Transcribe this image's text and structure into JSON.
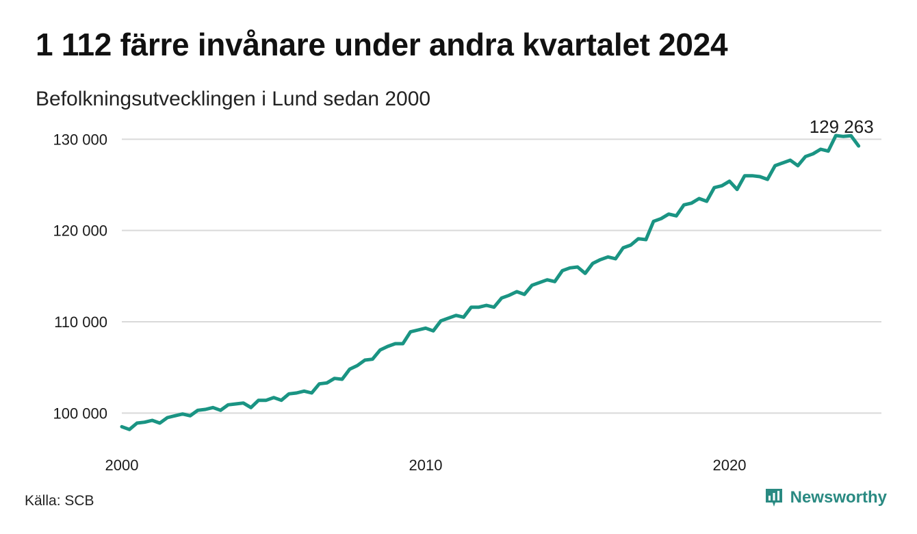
{
  "header": {
    "title": "1 112 färre invånare under andra kvartalet 2024",
    "subtitle": "Befolkningsutvecklingen i Lund sedan 2000"
  },
  "footer": {
    "source": "Källa: SCB",
    "brand": "Newsworthy",
    "brand_icon": "newsworthy-logo-icon"
  },
  "colors": {
    "line": "#1a9483",
    "grid": "#d9d9d9",
    "brand": "#2a8a82"
  },
  "chart_data": {
    "type": "line",
    "title": "1 112 färre invånare under andra kvartalet 2024",
    "subtitle": "Befolkningsutvecklingen i Lund sedan 2000",
    "xlabel": "",
    "ylabel": "",
    "xlim": [
      2000.0,
      2025.0
    ],
    "ylim": [
      96500,
      131000
    ],
    "x_ticks": [
      2000,
      2010,
      2020
    ],
    "x_tick_labels": [
      "2000",
      "2010",
      "2020"
    ],
    "y_ticks": [
      100000,
      110000,
      120000,
      130000
    ],
    "y_tick_labels": [
      "100 000",
      "110 000",
      "120 000",
      "130 000"
    ],
    "grid": "horizontal",
    "annotation": {
      "x": 2024.25,
      "y": 129263,
      "label": "129 263"
    },
    "series": [
      {
        "x": [
          2000.0,
          2000.25,
          2000.5,
          2000.75,
          2001.0,
          2001.25,
          2001.5,
          2001.75,
          2002.0,
          2002.25,
          2002.5,
          2002.75,
          2003.0,
          2003.25,
          2003.5,
          2003.75,
          2004.0,
          2004.25,
          2004.5,
          2004.75,
          2005.0,
          2005.25,
          2005.5,
          2005.75,
          2006.0,
          2006.25,
          2006.5,
          2006.75,
          2007.0,
          2007.25,
          2007.5,
          2007.75,
          2008.0,
          2008.25,
          2008.5,
          2008.75,
          2009.0,
          2009.25,
          2009.5,
          2009.75,
          2010.0,
          2010.25,
          2010.5,
          2010.75,
          2011.0,
          2011.25,
          2011.5,
          2011.75,
          2012.0,
          2012.25,
          2012.5,
          2012.75,
          2013.0,
          2013.25,
          2013.5,
          2013.75,
          2014.0,
          2014.25,
          2014.5,
          2014.75,
          2015.0,
          2015.25,
          2015.5,
          2015.75,
          2016.0,
          2016.25,
          2016.5,
          2016.75,
          2017.0,
          2017.25,
          2017.5,
          2017.75,
          2018.0,
          2018.25,
          2018.5,
          2018.75,
          2019.0,
          2019.25,
          2019.5,
          2019.75,
          2020.0,
          2020.25,
          2020.5,
          2020.75,
          2021.0,
          2021.25,
          2021.5,
          2021.75,
          2022.0,
          2022.25,
          2022.5,
          2022.75,
          2023.0,
          2023.25,
          2023.5,
          2023.75,
          2024.0,
          2024.25
        ],
        "values": [
          98500,
          98200,
          98900,
          99000,
          99200,
          98900,
          99500,
          99700,
          99900,
          99700,
          100300,
          100400,
          100600,
          100300,
          100900,
          101000,
          101100,
          100600,
          101400,
          101400,
          101700,
          101400,
          102100,
          102200,
          102400,
          102200,
          103200,
          103300,
          103800,
          103700,
          104800,
          105200,
          105800,
          105900,
          106900,
          107300,
          107600,
          107600,
          108900,
          109100,
          109300,
          109000,
          110100,
          110400,
          110700,
          110500,
          111600,
          111600,
          111800,
          111600,
          112600,
          112900,
          113300,
          113000,
          114000,
          114300,
          114600,
          114400,
          115600,
          115900,
          116000,
          115300,
          116400,
          116800,
          117100,
          116900,
          118100,
          118400,
          119100,
          119000,
          121000,
          121300,
          121800,
          121600,
          122800,
          123000,
          123500,
          123200,
          124700,
          124900,
          125400,
          124500,
          126000,
          126000,
          125900,
          125600,
          127100,
          127400,
          127700,
          127100,
          128100,
          128400,
          128900,
          128700,
          130400,
          130300,
          130375,
          129263
        ]
      }
    ]
  }
}
